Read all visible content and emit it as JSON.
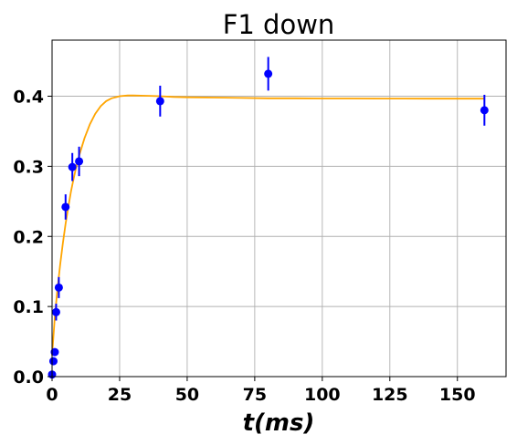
{
  "chart_data": {
    "type": "scatter",
    "title": "F1 down",
    "xlabel": "t(ms)",
    "ylabel": "",
    "xlim": [
      0,
      168
    ],
    "ylim": [
      0,
      0.48
    ],
    "grid": true,
    "xticks": [
      0,
      25,
      50,
      75,
      100,
      125,
      150
    ],
    "yticks": [
      0.0,
      0.1,
      0.2,
      0.3,
      0.4
    ],
    "xtick_labels": [
      "0",
      "25",
      "50",
      "75",
      "100",
      "125",
      "150"
    ],
    "ytick_labels": [
      "0.0",
      "0.1",
      "0.2",
      "0.3",
      "0.4"
    ],
    "series": [
      {
        "kind": "points_with_errorbars",
        "color": "#0000ff",
        "x": [
          0,
          0.5,
          1,
          1.5,
          2.5,
          5,
          7.5,
          10,
          40,
          80,
          160
        ],
        "y": [
          0.003,
          0.022,
          0.035,
          0.092,
          0.127,
          0.242,
          0.299,
          0.307,
          0.393,
          0.432,
          0.38
        ],
        "yerr": [
          0,
          0,
          0,
          0.012,
          0.015,
          0.018,
          0.02,
          0.021,
          0.022,
          0.024,
          0.022
        ]
      },
      {
        "kind": "fit_line",
        "color": "#ffa500",
        "x": [
          0,
          1,
          2,
          3,
          4,
          5,
          6,
          7,
          8,
          9,
          10,
          12,
          14,
          16,
          18,
          20,
          22,
          25,
          28,
          30,
          33,
          36,
          40,
          45,
          50,
          60,
          70,
          80,
          90,
          100,
          110,
          120,
          130,
          140,
          150,
          160
        ],
        "y": [
          0.03,
          0.085,
          0.125,
          0.16,
          0.19,
          0.218,
          0.242,
          0.264,
          0.283,
          0.3,
          0.315,
          0.34,
          0.36,
          0.375,
          0.386,
          0.393,
          0.397,
          0.4,
          0.401,
          0.401,
          0.4008,
          0.4005,
          0.4,
          0.399,
          0.3985,
          0.398,
          0.3975,
          0.397,
          0.397,
          0.3968,
          0.3967,
          0.3966,
          0.3966,
          0.3965,
          0.3965,
          0.3965
        ]
      }
    ]
  }
}
